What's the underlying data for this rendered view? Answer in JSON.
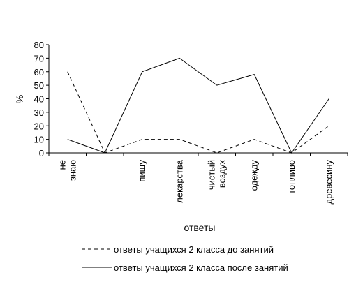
{
  "chart_data": {
    "type": "line",
    "title": "",
    "xlabel": "ответы",
    "ylabel": "%",
    "ylim": [
      0,
      80
    ],
    "yticks": [
      0,
      10,
      20,
      30,
      40,
      50,
      60,
      70,
      80
    ],
    "grid": false,
    "legend_position": "bottom",
    "categories": [
      "не знаю",
      "",
      "пищу",
      "лекарства",
      "чистый воздух",
      "одежду",
      "топливо",
      "древесину"
    ],
    "series": [
      {
        "name": "ответы учащихся 2 класса до занятий",
        "style": "dashed",
        "color": "#000000",
        "values": [
          60,
          0,
          10,
          10,
          0,
          10,
          0,
          20
        ]
      },
      {
        "name": "ответы учащихся 2 класса после занятий",
        "style": "solid",
        "color": "#000000",
        "values": [
          10,
          0,
          60,
          70,
          50,
          58,
          0,
          40
        ]
      }
    ]
  }
}
